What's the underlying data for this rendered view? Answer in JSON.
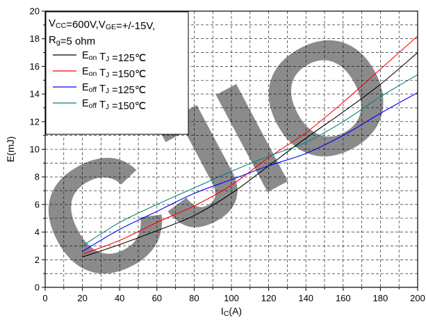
{
  "chart_data": {
    "type": "line",
    "xlabel": "Ic(A)",
    "ylabel": "E(mJ)",
    "xlim": [
      0,
      200
    ],
    "ylim": [
      0,
      20
    ],
    "x_ticks": [
      0,
      20,
      40,
      60,
      80,
      100,
      120,
      140,
      160,
      180,
      200
    ],
    "y_ticks": [
      0,
      2,
      4,
      6,
      8,
      10,
      12,
      14,
      16,
      18,
      20
    ],
    "grid": "dashed, major and minor",
    "legend_position": "top-left",
    "conditions": [
      "VCC=600V,VGE=+/-15V,",
      "Rg=5 ohm"
    ],
    "watermark": "CJIO",
    "series": [
      {
        "name": "Eon TJ=125℃",
        "color": "#000000",
        "x": [
          20,
          40,
          60,
          80,
          100,
          120,
          140,
          160,
          180,
          200
        ],
        "y": [
          2.2,
          3.1,
          4.1,
          5.2,
          6.8,
          8.8,
          10.8,
          12.7,
          14.7,
          17.0
        ]
      },
      {
        "name": "Eon TJ=150℃",
        "color": "#ff0000",
        "x": [
          20,
          40,
          60,
          80,
          100,
          120,
          140,
          160,
          180,
          200
        ],
        "y": [
          2.4,
          3.4,
          4.7,
          5.9,
          7.4,
          9.4,
          11.2,
          13.4,
          15.8,
          18.2
        ]
      },
      {
        "name": "Eoff TJ=125℃",
        "color": "#0000ff",
        "x": [
          20,
          40,
          60,
          80,
          100,
          120,
          140,
          160,
          180,
          200
        ],
        "y": [
          2.6,
          4.2,
          5.5,
          6.8,
          7.8,
          8.8,
          9.7,
          11.0,
          12.6,
          14.1
        ]
      },
      {
        "name": "Eoff TJ=150℃",
        "color": "#008080",
        "x": [
          20,
          40,
          60,
          80,
          100,
          120,
          140,
          160,
          180,
          200
        ],
        "y": [
          3.0,
          4.7,
          6.0,
          7.2,
          8.4,
          9.5,
          10.5,
          12.0,
          13.8,
          15.4
        ]
      }
    ]
  },
  "legend": {
    "note_line1": "VCC=600V,VGE=+/-15V,",
    "note_line2": "Rg=5 ohm",
    "items": [
      {
        "label": "Eon TJ =125℃"
      },
      {
        "label": "Eon TJ =150℃"
      },
      {
        "label": "Eoff TJ =125℃"
      },
      {
        "label": "Eoff  TJ =150℃"
      }
    ]
  },
  "colors": {
    "grid": "#000000",
    "watermark": "#d4d4d4"
  }
}
